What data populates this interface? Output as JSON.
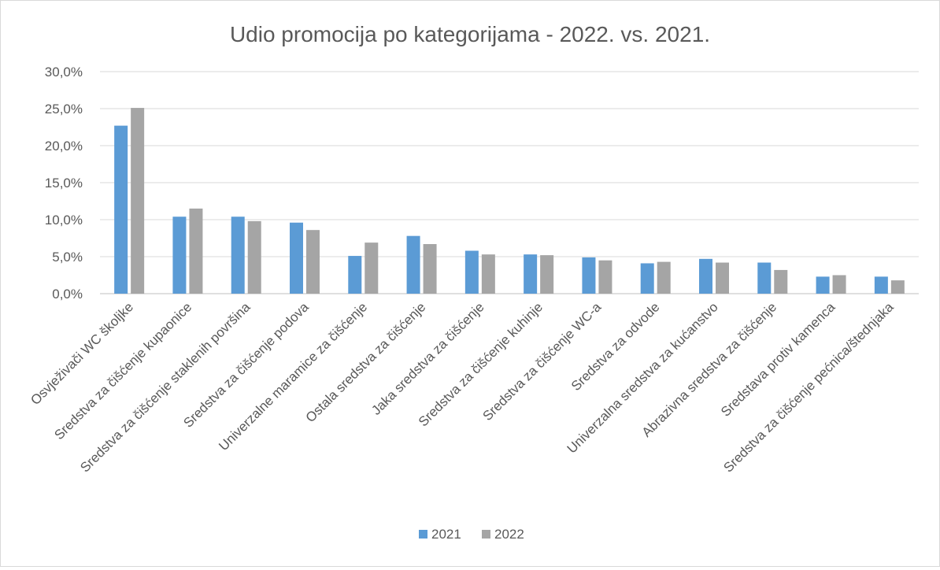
{
  "chart_data": {
    "type": "bar",
    "title": "Udio promocija po kategorijama - 2022. vs. 2021.",
    "xlabel": "",
    "ylabel": "",
    "ylim": [
      0,
      30
    ],
    "yticks": [
      0,
      5,
      10,
      15,
      20,
      25,
      30
    ],
    "ytick_labels": [
      "0,0%",
      "5,0%",
      "10,0%",
      "15,0%",
      "20,0%",
      "25,0%",
      "30,0%"
    ],
    "grid": true,
    "legend_position": "bottom",
    "categories": [
      "Osvježivači WC školjke",
      "Sredstva za čišćenje kupaonice",
      "Sredstva za čišćenje staklenih površina",
      "Sredstva za čišćenje podova",
      "Univerzalne maramice za čišćenje",
      "Ostala sredstva za čišćenje",
      "Jaka sredstva za čišćenje",
      "Sredstva za čišćenje kuhinje",
      "Sredstva za čišćenje WC-a",
      "Sredstva za odvode",
      "Univerzalna sredstva za kućanstvo",
      "Abrazivna sredstva za čišćenje",
      "Sredstava protiv kamenca",
      "Sredstva za čišćenje pećnica/štednjaka"
    ],
    "series": [
      {
        "name": "2021",
        "color": "#5b9bd5",
        "values": [
          22.7,
          10.4,
          10.4,
          9.6,
          5.1,
          7.8,
          5.8,
          5.3,
          4.9,
          4.1,
          4.7,
          4.2,
          2.3,
          2.3
        ]
      },
      {
        "name": "2022",
        "color": "#a5a5a5",
        "values": [
          25.1,
          11.5,
          9.8,
          8.6,
          6.9,
          6.7,
          5.3,
          5.2,
          4.5,
          4.3,
          4.2,
          3.2,
          2.5,
          1.8
        ]
      }
    ],
    "colors": {
      "grid": "#d9d9d9",
      "axis": "#bfbfbf",
      "text": "#595959",
      "title": "#595959"
    }
  }
}
